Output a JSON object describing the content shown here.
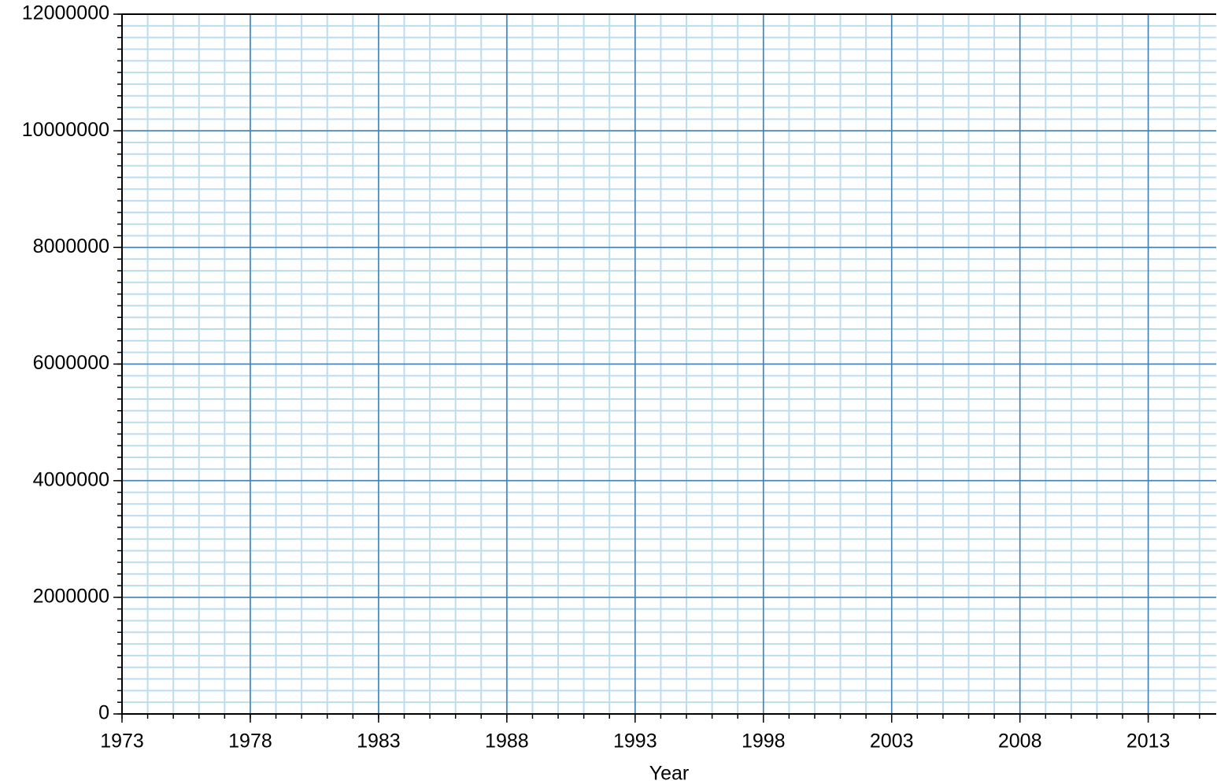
{
  "chart_data": {
    "type": "line",
    "x_label": "Year",
    "xlim": [
      1973,
      2015.65
    ],
    "xticks": [
      1973,
      1978,
      1983,
      1988,
      1993,
      1998,
      2003,
      2008,
      2013
    ],
    "ylim": [
      0,
      12000000
    ],
    "yticks": [
      0,
      2000000,
      4000000,
      6000000,
      8000000,
      10000000,
      12000000
    ],
    "x_minor_step": 1,
    "y_minor_step": 200000,
    "grid": true,
    "major_grid_color": "#3f7fb8",
    "minor_grid_color": "#bcdcf0"
  }
}
